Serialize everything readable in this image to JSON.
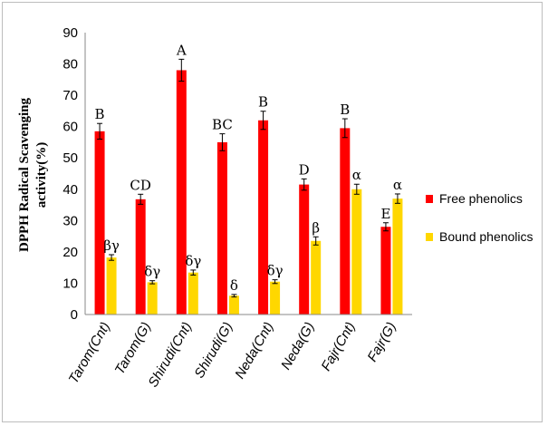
{
  "chart_data": {
    "type": "bar",
    "ylabel": "DPPH Radical Scavenging activity(%)",
    "ylabel_lines": [
      "DPPH Radical Scavenging",
      "activity(%)"
    ],
    "ylim": [
      0,
      90
    ],
    "yticks": [
      0,
      10,
      20,
      30,
      40,
      50,
      60,
      70,
      80,
      90
    ],
    "grid": false,
    "legend_position": "right",
    "groups": [
      [
        "Tarom(Cnt)",
        "Tarom(G)"
      ],
      [
        "Shirudi(Cnt)",
        "Shirudi(G)"
      ],
      [
        "Neda(Cnt)",
        "Neda(G)"
      ],
      [
        "Fajr(Cnt)",
        "Fajr(G)"
      ]
    ],
    "categories": [
      "Tarom(Cnt)",
      "Tarom(G)",
      "Shirudi(Cnt)",
      "Shirudi(G)",
      "Neda(Cnt)",
      "Neda(G)",
      "Fajr(Cnt)",
      "Fajr(G)"
    ],
    "series": [
      {
        "name": "Free phenolics",
        "color": "#ff0000",
        "values": [
          58.5,
          36.8,
          78.0,
          55.0,
          62.0,
          41.5,
          59.5,
          28.0
        ],
        "errors": [
          2.5,
          1.6,
          3.5,
          2.7,
          2.9,
          1.8,
          3.0,
          1.3
        ],
        "labels": [
          "B",
          "CD",
          "A",
          "BC",
          "B",
          "D",
          "B",
          "E"
        ]
      },
      {
        "name": "Bound phenolics",
        "color": "#ffd700",
        "values": [
          18.2,
          10.3,
          13.4,
          6.0,
          10.5,
          23.5,
          40.0,
          37.0
        ],
        "errors": [
          0.9,
          0.5,
          0.8,
          0.4,
          0.6,
          1.3,
          1.6,
          1.5
        ],
        "labels": [
          "βγ",
          "δγ",
          "δγ",
          "δ",
          "δγ",
          "β",
          "α",
          "α"
        ]
      }
    ]
  }
}
